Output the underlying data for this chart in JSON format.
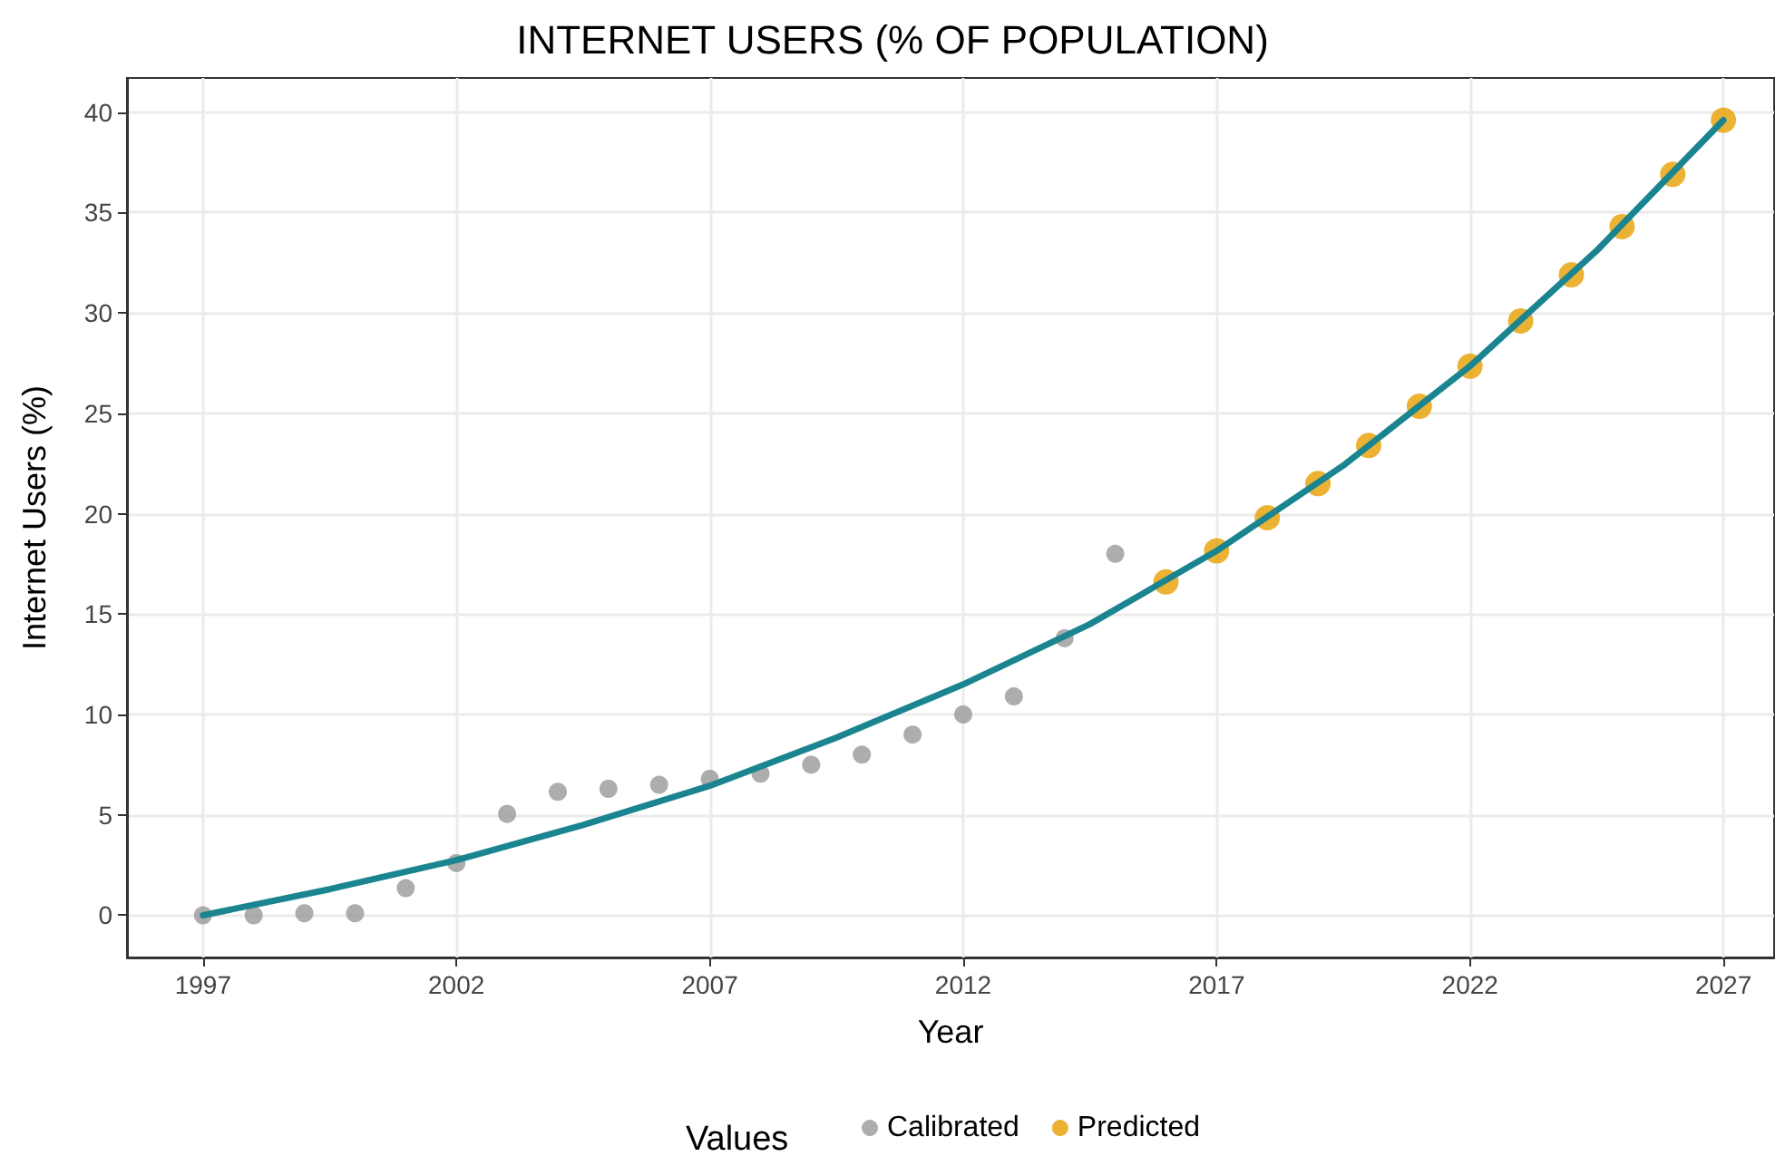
{
  "chart_data": {
    "type": "scatter",
    "title": "INTERNET USERS (% OF POPULATION)",
    "xlabel": "Year",
    "ylabel": "Internet Users (%)",
    "legend_title": "Values",
    "legend": "bottom",
    "grid": true,
    "marker": "circle",
    "xlim": [
      1995.5,
      2028
    ],
    "xticks": [
      1997,
      2002,
      2007,
      2012,
      2017,
      2022,
      2027
    ],
    "ylim": [
      -2.1,
      41.7
    ],
    "yticks": [
      0,
      5,
      10,
      15,
      20,
      25,
      30,
      35,
      40
    ],
    "series": [
      {
        "name": "Calibrated",
        "color": "#999999",
        "x": [
          1997,
          1998,
          1999,
          2000,
          2001,
          2002,
          2003,
          2004,
          2005,
          2006,
          2007,
          2008,
          2009,
          2010,
          2011,
          2012,
          2013,
          2014,
          2015
        ],
        "values": [
          0,
          0,
          0.1,
          0.1,
          1.35,
          2.6,
          5.05,
          6.15,
          6.3,
          6.5,
          6.8,
          7.05,
          7.5,
          8.0,
          9.0,
          10.0,
          10.9,
          13.8,
          18.0
        ]
      },
      {
        "name": "Predicted",
        "color": "#e69f00",
        "x": [
          2016,
          2017,
          2018,
          2019,
          2020,
          2021,
          2022,
          2023,
          2024,
          2025,
          2026,
          2027
        ],
        "values": [
          16.6,
          18.15,
          19.8,
          21.5,
          23.4,
          25.35,
          27.35,
          29.6,
          31.9,
          34.3,
          36.9,
          39.6
        ]
      },
      {
        "type": "line",
        "color": "#1a8590",
        "marker": "none",
        "x": [
          1997,
          1999.5,
          2002,
          2004.5,
          2007,
          2009.5,
          2012,
          2014.5,
          2017,
          2019.5,
          2022,
          2024.5,
          2027
        ],
        "values": [
          0,
          1.3,
          2.75,
          4.5,
          6.45,
          8.85,
          11.5,
          14.5,
          18.15,
          22.4,
          27.35,
          33.1,
          39.6
        ]
      }
    ]
  }
}
